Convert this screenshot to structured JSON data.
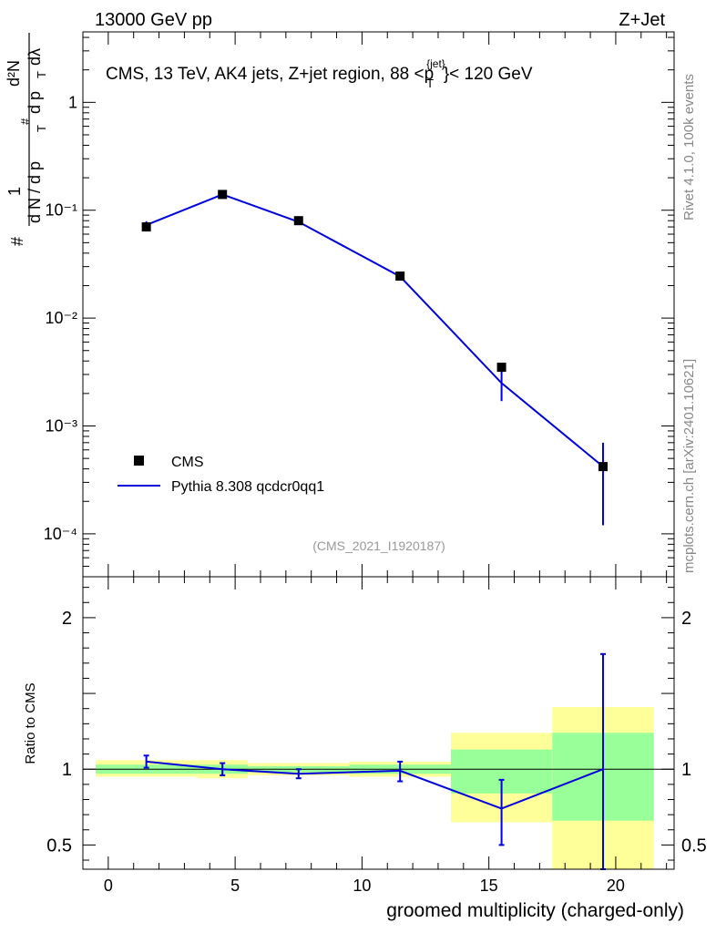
{
  "header": {
    "left": "13000 GeV pp",
    "right": "Z+Jet"
  },
  "side_labels": {
    "rivet": "Rivet 4.1.0,  100k events",
    "mcplots": "mcplots.cern.ch [arXiv:2401.10621]"
  },
  "chart_data": [
    {
      "type": "scatter",
      "panel": "main",
      "title": "CMS, 13 TeV, AK4 jets, Z+jet region, 88 <p_T^{jet}< 120 GeV",
      "title_parts": {
        "main": "CMS, 13 TeV, AK4 jets, Z+jet region, 88 <p",
        "sub": "T",
        "sup": "{jet}",
        "tail": "}< 120 GeV"
      },
      "ylabel_parts": {
        "hash": "#",
        "one": "1",
        "denominator": "d N / d p",
        "sub": "T",
        "hash2": "#",
        "d2N": "d²N",
        "dpT": "d p",
        "dlambda": "dλ"
      },
      "yscale": "log",
      "ylim": [
        4e-05,
        4.5
      ],
      "xlim": [
        -1,
        22.3
      ],
      "yticks": [
        {
          "value": 1,
          "label": "1"
        },
        {
          "value": 0.1,
          "label": "10⁻¹"
        },
        {
          "value": 0.01,
          "label": "10⁻²"
        },
        {
          "value": 0.001,
          "label": "10⁻³"
        },
        {
          "value": 0.0001,
          "label": "10⁻⁴"
        }
      ],
      "watermark": "(CMS_2021_I1920187)",
      "legend": {
        "position": "lower-left",
        "entries": [
          "CMS",
          "Pythia 8.308 qcdcr0qq1"
        ]
      },
      "series": [
        {
          "name": "CMS",
          "marker": "square",
          "color": "#000000",
          "x": [
            1.5,
            4.5,
            7.5,
            11.5,
            15.5,
            19.5
          ],
          "y": [
            0.07,
            0.14,
            0.08,
            0.0245,
            0.0035,
            0.00042
          ]
        },
        {
          "name": "Pythia 8.308 qcdcr0qq1",
          "color": "#0000dd",
          "x": [
            1.5,
            4.5,
            7.5,
            11.5,
            15.5,
            19.5
          ],
          "y": [
            0.073,
            0.14,
            0.078,
            0.0243,
            0.0025,
            0.00042
          ],
          "err_low": [
            0.067,
            0.136,
            0.075,
            0.0228,
            0.0017,
            0.00012
          ],
          "err_high": [
            0.079,
            0.146,
            0.083,
            0.0258,
            0.0033,
            0.0007
          ]
        }
      ]
    },
    {
      "type": "line",
      "panel": "ratio",
      "ylabel": "Ratio to CMS",
      "xlabel": "groomed multiplicity (charged-only)",
      "ylim": [
        0.34,
        2.27
      ],
      "xlim": [
        -1,
        22.3
      ],
      "xticks": [
        0,
        5,
        10,
        15,
        20
      ],
      "yticks": [
        {
          "value": 0.5,
          "label": "0.5"
        },
        {
          "value": 1,
          "label": "1"
        },
        {
          "value": 2,
          "label": "2"
        }
      ],
      "bands": [
        {
          "x0": -0.5,
          "x1": 3.5,
          "y_low": 0.95,
          "y_high": 1.06,
          "g_low": 0.97,
          "g_high": 1.03
        },
        {
          "x0": 3.5,
          "x1": 5.5,
          "y_low": 0.94,
          "y_high": 1.06,
          "g_low": 0.97,
          "g_high": 1.03
        },
        {
          "x0": 5.5,
          "x1": 9.5,
          "y_low": 0.96,
          "y_high": 1.04,
          "g_low": 0.98,
          "g_high": 1.02
        },
        {
          "x0": 9.5,
          "x1": 13.5,
          "y_low": 0.95,
          "y_high": 1.05,
          "g_low": 0.97,
          "g_high": 1.03
        },
        {
          "x0": 13.5,
          "x1": 17.5,
          "y_low": 0.65,
          "y_high": 1.24,
          "g_low": 0.84,
          "g_high": 1.13
        },
        {
          "x0": 17.5,
          "x1": 21.5,
          "y_low": 0.34,
          "y_high": 1.41,
          "g_low": 0.66,
          "g_high": 1.24
        }
      ],
      "series": [
        {
          "name": "Pythia 8.308 qcdcr0qq1",
          "color": "#0000dd",
          "x": [
            1.5,
            4.5,
            7.5,
            11.5,
            15.5,
            19.5
          ],
          "y": [
            1.05,
            1.0,
            0.97,
            0.99,
            0.74,
            1.0
          ],
          "err_low": [
            1.01,
            0.96,
            0.94,
            0.92,
            0.5,
            0.34
          ],
          "err_high": [
            1.09,
            1.04,
            1.0,
            1.05,
            0.93,
            1.76
          ]
        }
      ]
    }
  ]
}
